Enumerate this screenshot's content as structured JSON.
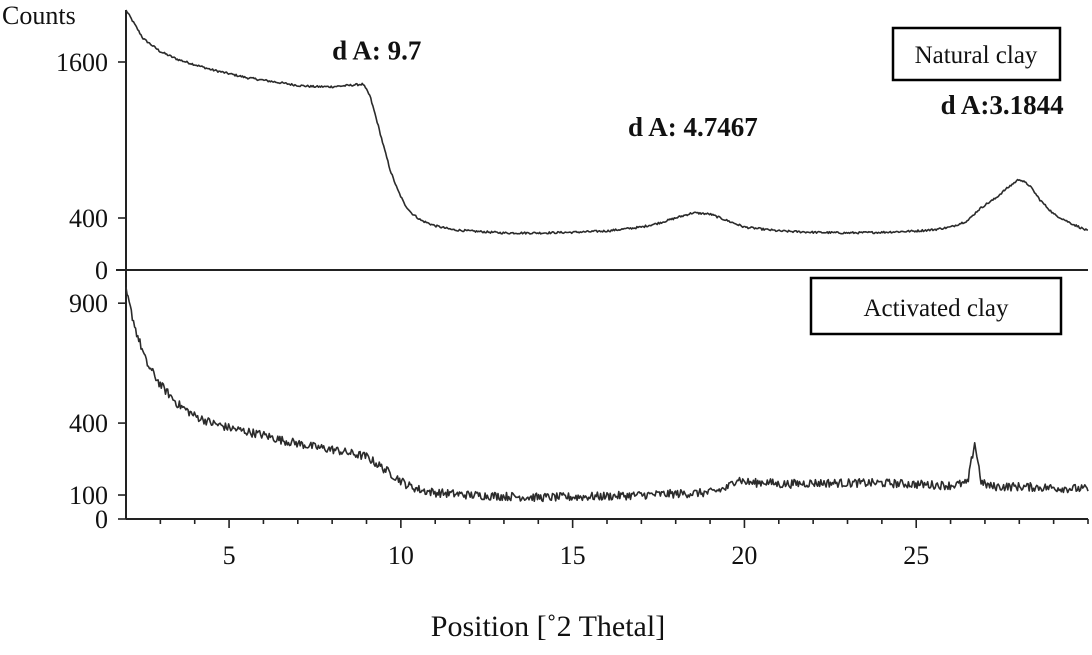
{
  "chart_data": {
    "type": "line",
    "y_unit_label": "Counts",
    "xlabel": "Position [˚2 Thetal]",
    "xlim": [
      2,
      30
    ],
    "x_ticks": [
      5,
      10,
      15,
      20,
      25
    ],
    "panels": [
      {
        "id": "top",
        "series": [
          {
            "name": "Natural clay",
            "x": [
              2.0,
              2.5,
              3.0,
              3.5,
              4.0,
              4.5,
              5.0,
              5.5,
              6.0,
              6.5,
              7.0,
              7.5,
              8.0,
              8.5,
              8.9,
              9.1,
              9.3,
              9.5,
              9.7,
              9.9,
              10.1,
              10.3,
              10.6,
              11.0,
              11.5,
              12.0,
              13.0,
              14.0,
              15.0,
              16.0,
              17.0,
              17.5,
              18.0,
              18.5,
              19.0,
              19.5,
              20.0,
              21.0,
              22.0,
              23.0,
              24.0,
              25.0,
              25.5,
              26.0,
              26.5,
              26.8,
              27.0,
              27.3,
              27.6,
              28.0,
              28.3,
              28.6,
              29.0,
              29.5,
              30.0
            ],
            "y": [
              2000,
              1780,
              1680,
              1620,
              1580,
              1540,
              1510,
              1480,
              1460,
              1440,
              1420,
              1410,
              1410,
              1420,
              1430,
              1340,
              1150,
              950,
              760,
              620,
              510,
              440,
              380,
              340,
              310,
              300,
              285,
              285,
              290,
              300,
              330,
              360,
              400,
              440,
              430,
              380,
              330,
              300,
              290,
              285,
              290,
              300,
              310,
              330,
              380,
              460,
              500,
              550,
              620,
              700,
              650,
              540,
              430,
              360,
              300
            ]
          }
        ],
        "y_ticks": [
          {
            "value": 0,
            "label": "0"
          },
          {
            "value": 400,
            "label": "400"
          },
          {
            "value": 1600,
            "label": "1600"
          }
        ],
        "annotations": [
          {
            "text": "d A: 9.7",
            "x": 9.3,
            "y": 1620
          },
          {
            "text": "d A: 4.7467",
            "x": 18.5,
            "y": 1030
          },
          {
            "text": "d A:3.1844",
            "x": 27.5,
            "y": 1200
          }
        ]
      },
      {
        "id": "bottom",
        "series": [
          {
            "name": "Activated clay",
            "x": [
              2.0,
              2.3,
              2.6,
              3.0,
              3.5,
              4.0,
              4.5,
              5.0,
              5.5,
              6.0,
              6.5,
              7.0,
              7.5,
              8.0,
              8.5,
              9.0,
              9.4,
              9.8,
              10.2,
              10.6,
              11.0,
              12.0,
              13.0,
              14.0,
              15.0,
              16.0,
              17.0,
              18.0,
              19.0,
              19.5,
              19.8,
              20.0,
              20.3,
              20.6,
              21.0,
              22.0,
              23.0,
              24.0,
              25.0,
              26.0,
              26.5,
              26.7,
              26.9,
              27.2,
              28.0,
              29.0,
              30.0
            ],
            "y": [
              950,
              780,
              650,
              560,
              480,
              430,
              400,
              380,
              365,
              350,
              330,
              315,
              300,
              290,
              275,
              260,
              220,
              180,
              140,
              120,
              110,
              100,
              95,
              90,
              92,
              95,
              100,
              105,
              110,
              130,
              170,
              155,
              150,
              155,
              145,
              150,
              150,
              150,
              145,
              140,
              150,
              320,
              150,
              135,
              135,
              130,
              125
            ]
          }
        ],
        "y_ticks": [
          {
            "value": 0,
            "label": "0"
          },
          {
            "value": 100,
            "label": "100"
          },
          {
            "value": 400,
            "label": "400"
          },
          {
            "value": 900,
            "label": "900"
          }
        ]
      }
    ]
  }
}
